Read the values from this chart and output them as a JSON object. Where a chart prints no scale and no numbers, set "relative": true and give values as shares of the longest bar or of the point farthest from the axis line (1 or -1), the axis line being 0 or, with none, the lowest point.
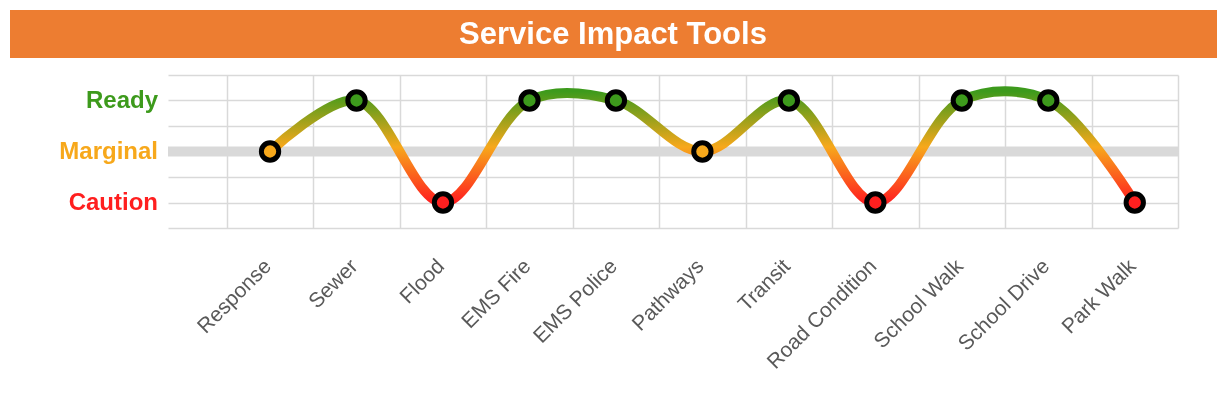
{
  "chart_data": {
    "type": "line",
    "title": "Service Impact Tools",
    "relative": true,
    "categories": [
      "Response",
      "Sewer",
      "Flood",
      "EMS Fire",
      "EMS Police",
      "Pathways",
      "Transit",
      "Road Condition",
      "School Walk",
      "School Drive",
      "Park Walk"
    ],
    "values": [
      0.5,
      1,
      0,
      1,
      1,
      0.5,
      1,
      0,
      1,
      1,
      0
    ],
    "colors": [
      "#f7a81b",
      "#3d9a1c",
      "#ff1f1f",
      "#3d9a1c",
      "#3d9a1c",
      "#f7a81b",
      "#3d9a1c",
      "#ff1f1f",
      "#3d9a1c",
      "#3d9a1c",
      "#ff1f1f"
    ],
    "annotations": [
      "Ready",
      "Marginal",
      "Caution"
    ],
    "ref_lines": [
      {
        "axis": "y",
        "value": 0.5,
        "color": "#d9d9d9"
      }
    ],
    "grid": true,
    "marker": "circle",
    "line_style": "solid"
  }
}
